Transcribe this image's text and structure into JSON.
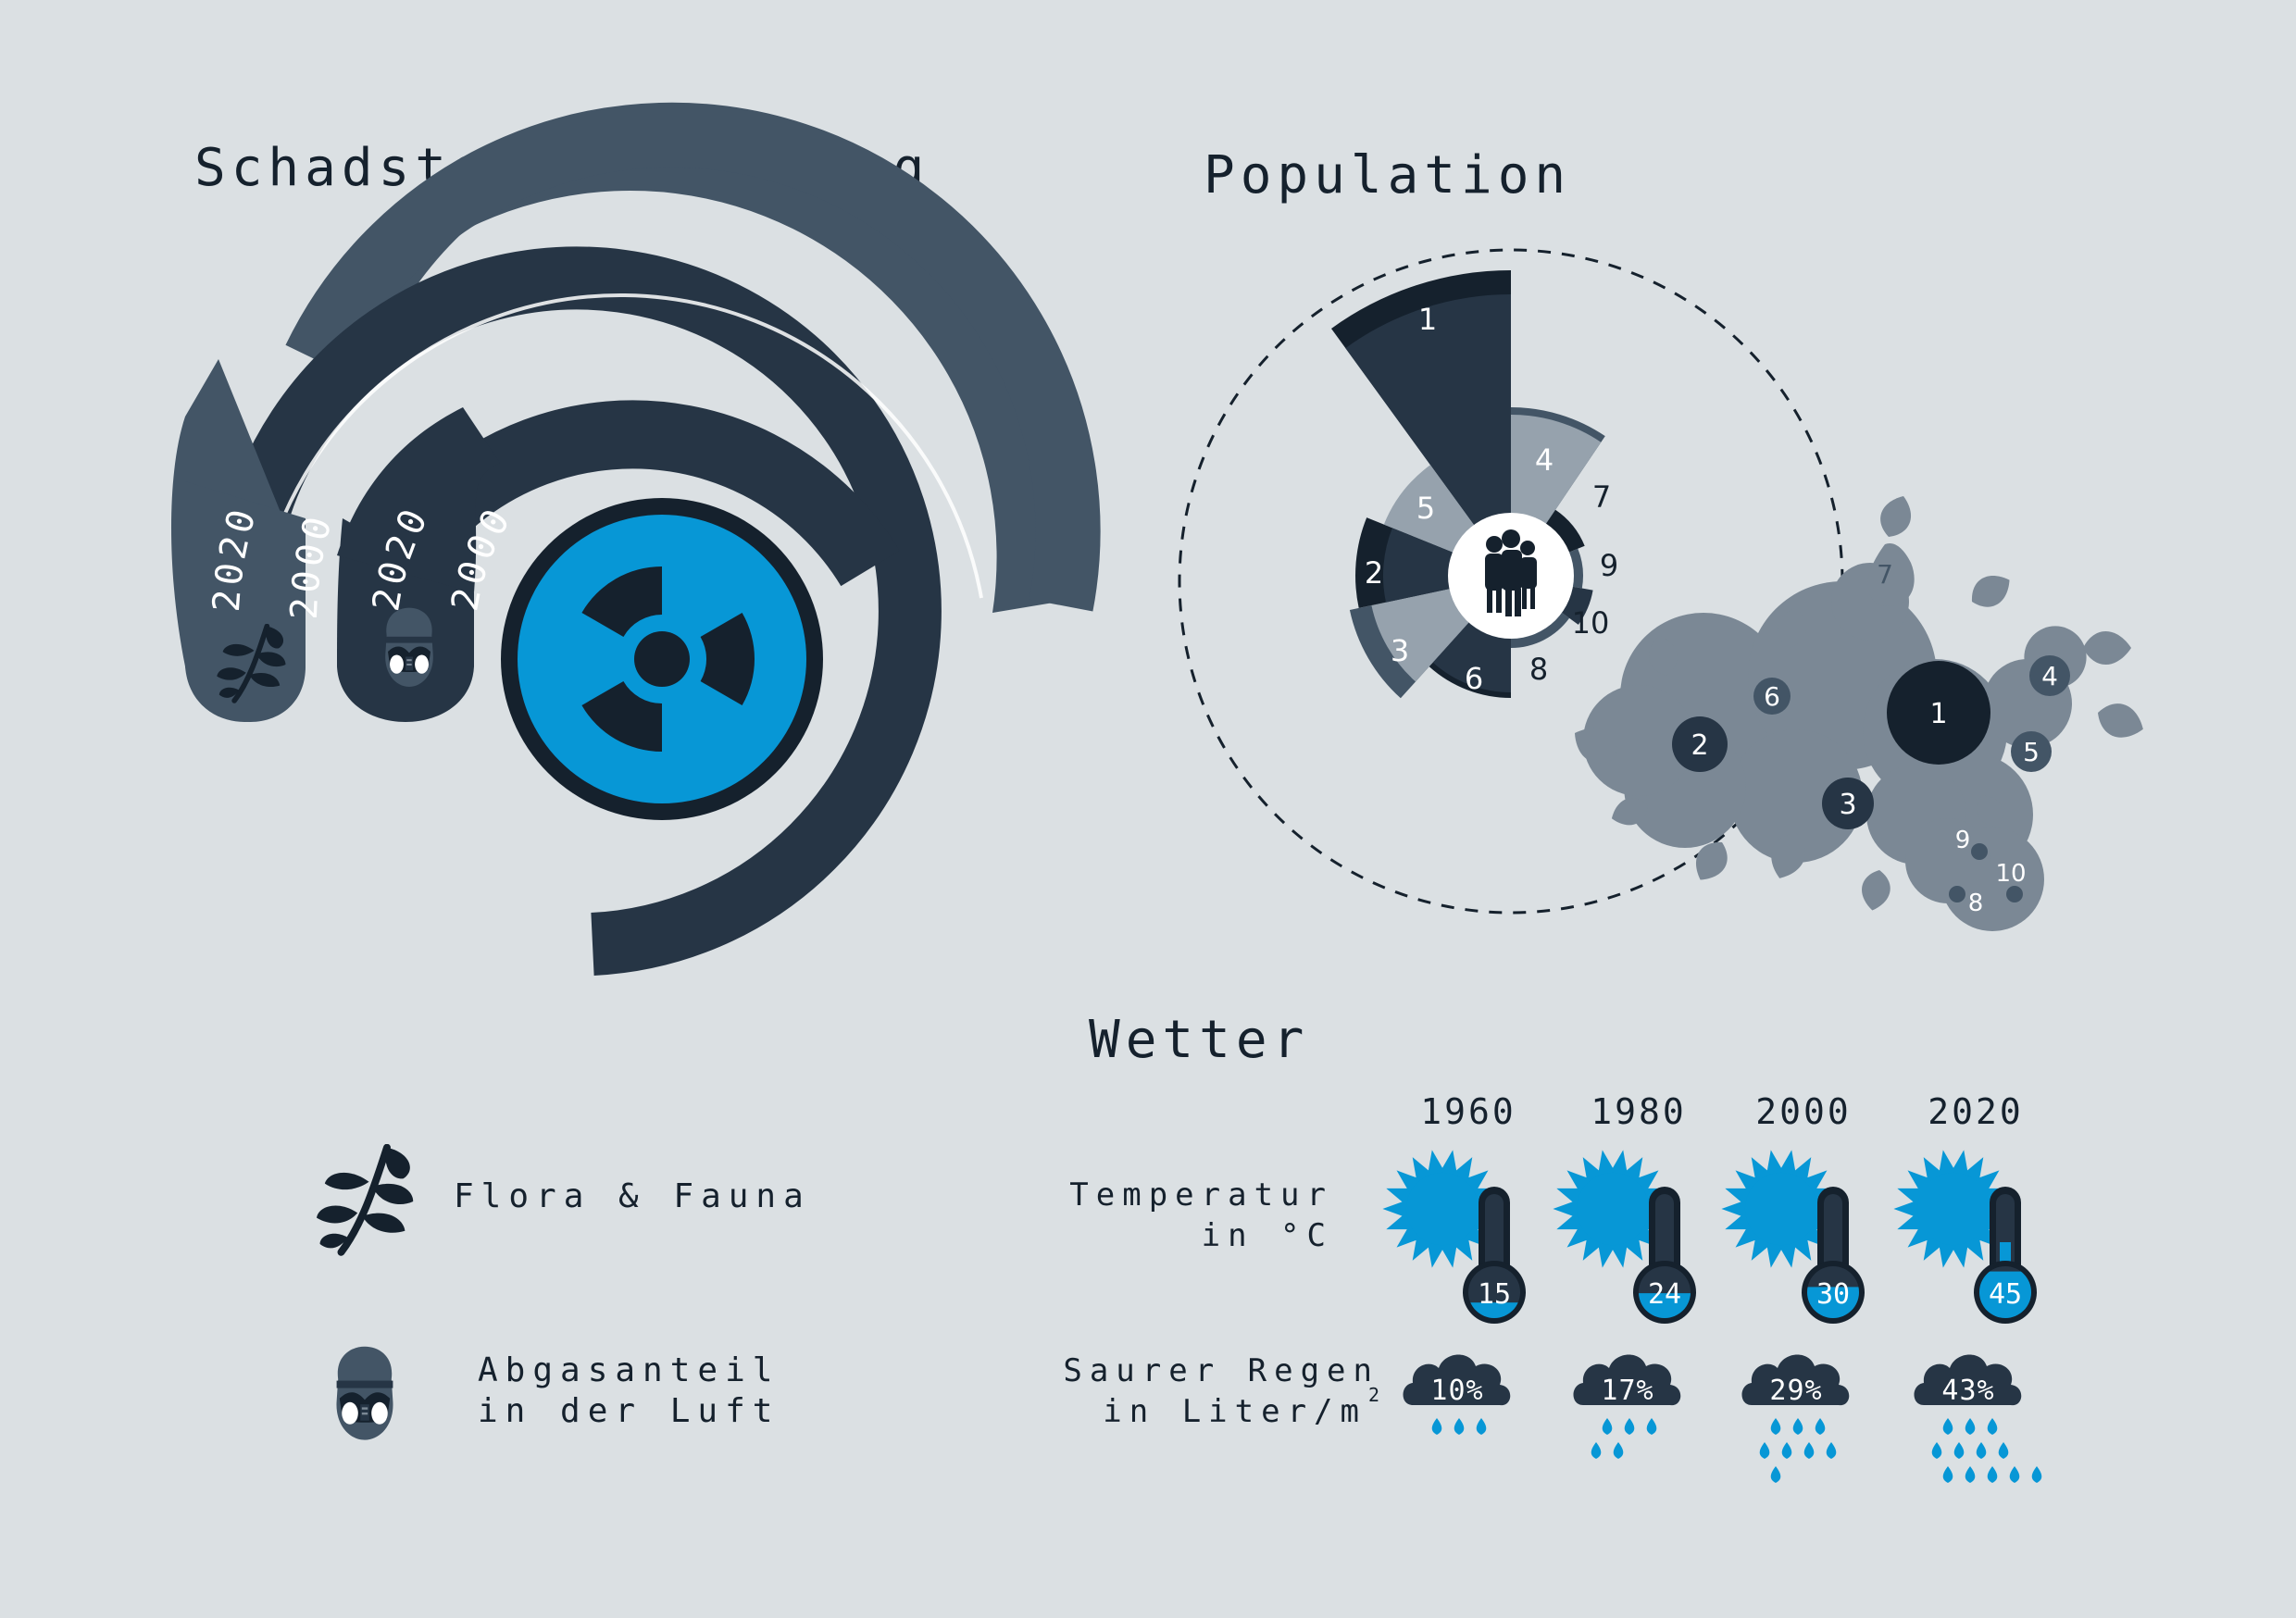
{
  "colors": {
    "background": "#dbe0e3",
    "ink": "#15212d",
    "dark": "#263545",
    "slate": "#435566",
    "gray": "#7b8895",
    "light": "#96a2ad",
    "accent": "#0797d6",
    "white": "#ffffff"
  },
  "sections": {
    "schad_title": "Schadstoffauswirkung",
    "population_title": "Population",
    "wetter_title": "Wetter"
  },
  "schad": {
    "arc_labels": {
      "flora_2020": "2020",
      "flora_2000": "2000",
      "air_2020": "2020",
      "air_2000": "2000"
    },
    "center_icon": "radiation-icon",
    "legend": [
      {
        "icon": "plant-icon",
        "label": "Flora & Fauna"
      },
      {
        "icon": "gas-mask-icon",
        "line1": "Abgasanteil",
        "line2": "in der Luft"
      }
    ]
  },
  "population": {
    "center_icon": "people-icon",
    "rose_labels": [
      "1",
      "2",
      "3",
      "4",
      "5",
      "6",
      "7",
      "8",
      "9",
      "10"
    ],
    "map_labels": [
      "1",
      "2",
      "3",
      "4",
      "5",
      "6",
      "7",
      "8",
      "9",
      "10"
    ]
  },
  "wetter": {
    "years": [
      "1960",
      "1980",
      "2000",
      "2020"
    ],
    "temp_label_line1": "Temperatur",
    "temp_label_line2": "in °C",
    "rain_label_line1": "Saurer Regen",
    "rain_label_line2": "in Liter/m",
    "rain_label_sup": "2",
    "temperature_values": [
      "15",
      "24",
      "30",
      "45"
    ],
    "acid_rain_values": [
      "10%",
      "17%",
      "29%",
      "43%"
    ]
  },
  "chart_data": [
    {
      "type": "table",
      "title": "Wetter",
      "columns": [
        "",
        "1960",
        "1980",
        "2000",
        "2020"
      ],
      "rows": [
        [
          "Temperatur in °C",
          "15",
          "24",
          "30",
          "45"
        ],
        [
          "Saurer Regen in Liter/m2",
          "10%",
          "17%",
          "29%",
          "43%"
        ]
      ],
      "temperature": [
        15,
        24,
        30,
        45
      ],
      "acid_rain_percent": [
        10,
        17,
        29,
        43
      ]
    }
  ]
}
